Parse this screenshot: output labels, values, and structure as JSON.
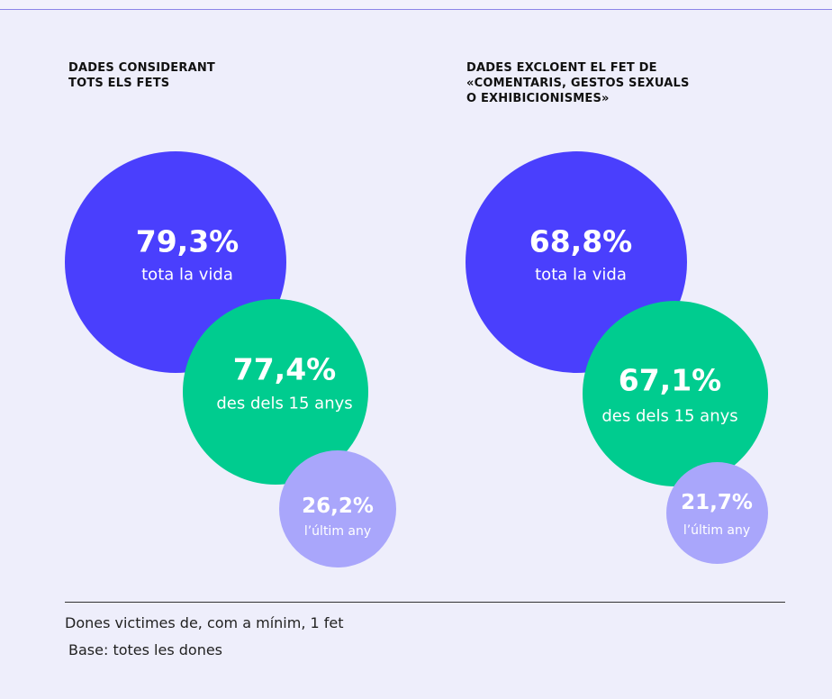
{
  "panels": [
    {
      "title": [
        "DADES CONSIDERANT",
        "TOTS ELS FETS"
      ],
      "bubbles": [
        {
          "value": "79,3%",
          "label": "tota la vida"
        },
        {
          "value": "77,4%",
          "label": "des dels 15 anys"
        },
        {
          "value": "26,2%",
          "label": "l’últim any"
        }
      ]
    },
    {
      "title": [
        "DADES EXCLOENT EL FET DE",
        "«COMENTARIS, GESTOS SEXUALS",
        "O EXHIBICIONISMES»"
      ],
      "bubbles": [
        {
          "value": "68,8%",
          "label": "tota la vida"
        },
        {
          "value": "67,1%",
          "label": "des dels 15 anys"
        },
        {
          "value": "21,7%",
          "label": "l’últim any"
        }
      ]
    }
  ],
  "footer": {
    "note": "Dones victimes de, com a mínim, 1 fet",
    "base": "Base: totes les dones"
  }
}
